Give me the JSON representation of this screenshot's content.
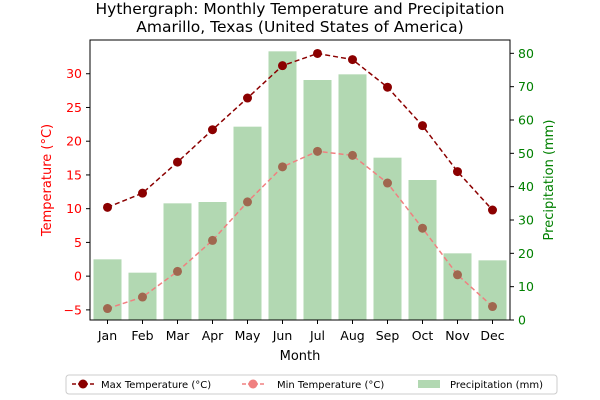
{
  "chart_data": {
    "type": "bar+line",
    "title": "Hythergraph: Monthly Temperature and Precipitation",
    "subtitle": "Amarillo, Texas (United States of America)",
    "xlabel": "Month",
    "ylabel_left": "Temperature (°C)",
    "ylabel_right": "Precipitation (mm)",
    "categories": [
      "Jan",
      "Feb",
      "Mar",
      "Apr",
      "May",
      "Jun",
      "Jul",
      "Aug",
      "Sep",
      "Oct",
      "Nov",
      "Dec"
    ],
    "ylim_left": [
      -6.5,
      35
    ],
    "yticks_left": [
      -5,
      0,
      5,
      10,
      15,
      20,
      25,
      30
    ],
    "ylim_right": [
      0,
      84
    ],
    "yticks_right": [
      0,
      10,
      20,
      30,
      40,
      50,
      60,
      70,
      80
    ],
    "grid": false,
    "legend_position": "bottom",
    "colors": {
      "left_axis": "#ff0000",
      "right_axis": "#008000",
      "max_temp": "#8b0000",
      "min_temp": "#f08080",
      "min_temp_marker": "#a0674f",
      "precip": "#b2d8b2"
    },
    "series": [
      {
        "name": "Max Temperature (°C)",
        "axis": "left",
        "kind": "line",
        "values": [
          10.2,
          12.3,
          16.9,
          21.7,
          26.4,
          31.2,
          33.0,
          32.1,
          28.0,
          22.3,
          15.5,
          9.8
        ]
      },
      {
        "name": "Min Temperature (°C)",
        "axis": "left",
        "kind": "line",
        "values": [
          -4.8,
          -3.1,
          0.7,
          5.3,
          11.0,
          16.2,
          18.5,
          17.9,
          13.8,
          7.1,
          0.2,
          -4.5
        ]
      },
      {
        "name": "Precipitation (mm)",
        "axis": "right",
        "kind": "bar",
        "values": [
          18.2,
          14.2,
          35.0,
          35.4,
          58.0,
          80.6,
          72.0,
          73.7,
          48.7,
          42.0,
          20.0,
          17.9
        ]
      }
    ]
  }
}
